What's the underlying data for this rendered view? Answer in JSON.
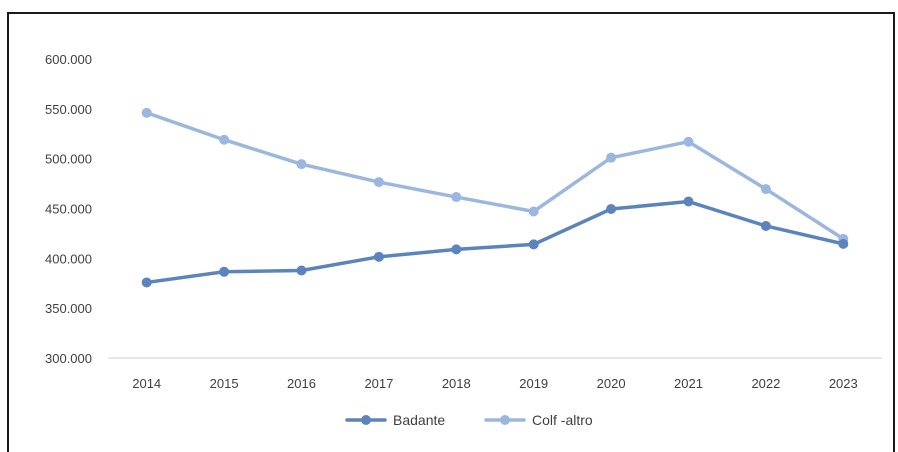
{
  "chart_data": {
    "type": "line",
    "title": "",
    "xlabel": "",
    "ylabel": "",
    "categories": [
      "2014",
      "2015",
      "2016",
      "2017",
      "2018",
      "2019",
      "2020",
      "2021",
      "2022",
      "2023"
    ],
    "y_ticks": [
      "300.000",
      "350.000",
      "400.000",
      "450.000",
      "500.000",
      "550.000",
      "600.000"
    ],
    "ylim": [
      300000,
      600000
    ],
    "grid": "none",
    "legend_position": "bottom",
    "series": [
      {
        "name": "Badante",
        "color": "#5b84bd",
        "values": [
          375800,
          386500,
          387800,
          401500,
          409000,
          414000,
          449500,
          457000,
          432500,
          414500
        ]
      },
      {
        "name": "Colf -altro",
        "color": "#9bb7e0",
        "values": [
          546000,
          519000,
          494500,
          476500,
          461500,
          447000,
          501000,
          517000,
          469500,
          419500
        ]
      }
    ]
  }
}
